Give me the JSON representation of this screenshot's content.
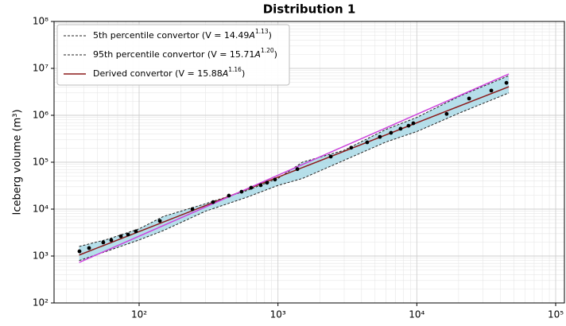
{
  "chart_data": {
    "type": "scatter",
    "title": "Distribution 1",
    "ylabel": "Iceberg volume (m³)",
    "xscale": "log",
    "yscale": "log",
    "grid": true,
    "legend": "upper left",
    "xlim": [
      24.4,
      115600
    ],
    "ylim": [
      100,
      100000000
    ],
    "xticks": [
      {
        "value": 100,
        "label": "10²"
      },
      {
        "value": 1000,
        "label": "10³"
      },
      {
        "value": 10000,
        "label": "10⁴"
      },
      {
        "value": 100000,
        "label": "10⁵"
      }
    ],
    "yticks": [
      {
        "value": 100,
        "label": "10²"
      },
      {
        "value": 1000,
        "label": "10³"
      },
      {
        "value": 10000,
        "label": "10⁴"
      },
      {
        "value": 100000,
        "label": "10⁵"
      },
      {
        "value": 1000000,
        "label": "10⁶"
      },
      {
        "value": 10000000,
        "label": "10⁷"
      },
      {
        "value": 100000000,
        "label": "10⁸"
      }
    ],
    "series": [
      {
        "type": "line",
        "name": [
          "5th percentile convertor (V = 14.49",
          "A",
          "1.13",
          ")"
        ],
        "color": "#222222",
        "dash": true,
        "x": [
          37,
          60,
          100,
          150,
          300,
          600,
          1000,
          1500,
          3000,
          6000,
          10000,
          20000,
          46000
        ],
        "values": [
          1600,
          2300,
          3800,
          7000,
          13000,
          25000,
          45000,
          100000,
          180000,
          500000,
          900000,
          2500000,
          7000000
        ]
      },
      {
        "type": "line",
        "name": [
          "95th percentile convertor (V = 15.71",
          "A",
          "1.20",
          ")"
        ],
        "color": "#222222",
        "dash": true,
        "x": [
          37,
          60,
          100,
          150,
          300,
          600,
          1000,
          1500,
          3000,
          6000,
          10000,
          20000,
          46000
        ],
        "values": [
          800,
          1300,
          2200,
          3500,
          9000,
          18000,
          32000,
          45000,
          110000,
          270000,
          450000,
          1100000,
          3000000
        ]
      },
      {
        "type": "line",
        "name": [
          "Derived convertor (V = 15.88",
          "A",
          "1.16",
          ")"
        ],
        "color": "#8b1a1a",
        "dash": false,
        "x": [
          37,
          46000
        ],
        "values": [
          1050,
          4070000
        ]
      },
      {
        "type": "line",
        "color": "#cc44dd",
        "dash": false,
        "x": [
          37,
          46000
        ],
        "values": [
          730,
          7600000
        ]
      },
      {
        "type": "scatter",
        "color": "#000000",
        "x": [
          37.2,
          43.6,
          55.2,
          63,
          73.9,
          83.2,
          94.8,
          141,
          242,
          341,
          443,
          547,
          641,
          751,
          835,
          952,
          1380,
          2400,
          3370,
          4390,
          5420,
          6520,
          7640,
          8720,
          9440,
          16400,
          23800,
          34400,
          44200
        ],
        "values": [
          1260,
          1480,
          1950,
          2180,
          2640,
          2870,
          3370,
          5600,
          10000,
          14100,
          19400,
          23500,
          28600,
          32300,
          36500,
          42700,
          71200,
          132000,
          204000,
          265000,
          347000,
          423000,
          517000,
          600000,
          676000,
          1070000,
          2280000,
          3370000,
          4920000
        ]
      }
    ]
  }
}
